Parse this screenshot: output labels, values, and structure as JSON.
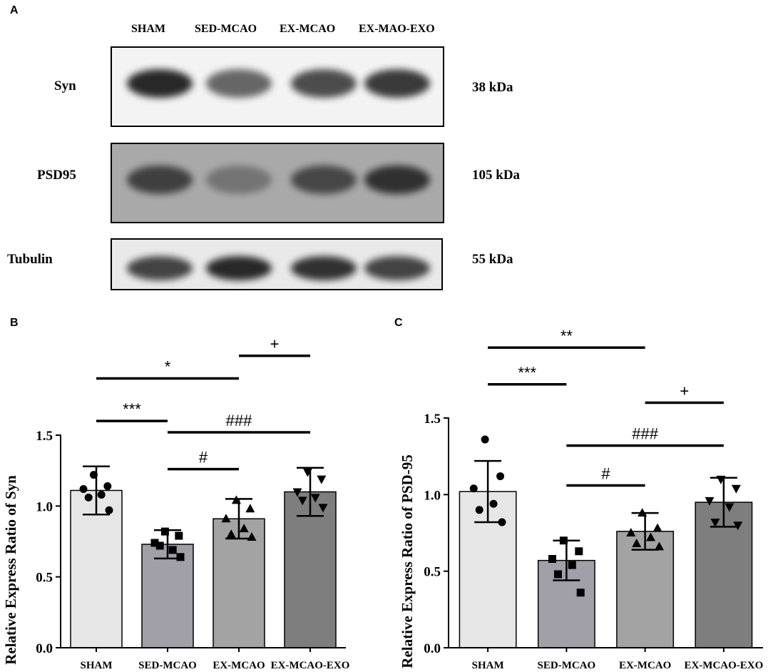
{
  "panels": {
    "a": "A",
    "b": "B",
    "c": "C"
  },
  "blot": {
    "lanes": [
      "SHAM",
      "SED-MCAO",
      "EX-MCAO",
      "EX-MAO-EXO"
    ],
    "rows": [
      {
        "label": "Syn",
        "kda": "38 kDa",
        "intensity": [
          1.0,
          0.65,
          0.8,
          0.9
        ],
        "background": "#f3f3f3"
      },
      {
        "label": "PSD95",
        "kda": "105 kDa",
        "intensity": [
          0.85,
          0.45,
          0.8,
          0.95
        ],
        "background": "#a9a9a9"
      },
      {
        "label": "Tubulin",
        "kda": "55 kDa",
        "intensity": [
          0.85,
          1.0,
          0.95,
          0.85
        ],
        "background": "#e9e9e9"
      }
    ]
  },
  "chart_data": [
    {
      "type": "bar",
      "ylabel": "Relative Express Ratio of Syn",
      "categories": [
        "SHAM",
        "SED-MCAO",
        "EX-MCAO",
        "EX-MCAO-EXO"
      ],
      "values": [
        1.11,
        0.73,
        0.91,
        1.1
      ],
      "errors": [
        0.17,
        0.1,
        0.14,
        0.17
      ],
      "colors": [
        "#e6e6e6",
        "#a1a0a8",
        "#a3a3a3",
        "#7e7e7e"
      ],
      "markers": [
        "circle",
        "square",
        "triangle-up",
        "triangle-down"
      ],
      "points": [
        [
          1.22,
          1.14,
          1.12,
          1.08,
          1.06,
          0.97
        ],
        [
          0.82,
          0.79,
          0.74,
          0.69,
          0.72,
          0.64
        ],
        [
          1.04,
          0.98,
          0.91,
          0.84,
          0.8,
          0.78
        ],
        [
          1.24,
          1.19,
          1.1,
          1.06,
          1.04,
          0.99
        ]
      ],
      "ylim": [
        0,
        1.5
      ],
      "yticks": [
        0.0,
        0.5,
        1.0,
        1.5
      ],
      "ytick_labels": [
        "0.0",
        "0.5",
        "1.0",
        "1.5"
      ],
      "significance": [
        {
          "x1": 0,
          "x2": 1,
          "y": 1.6,
          "label": "***"
        },
        {
          "x1": 0,
          "x2": 2,
          "y": 1.9,
          "label": "*"
        },
        {
          "x1": 2,
          "x2": 3,
          "y": 2.06,
          "label": "+"
        },
        {
          "x1": 1,
          "x2": 3,
          "y": 1.52,
          "label": "###"
        },
        {
          "x1": 1,
          "x2": 2,
          "y": 1.26,
          "label": "#"
        }
      ]
    },
    {
      "type": "bar",
      "ylabel": "Relative Express Ratio of PSD-95",
      "categories": [
        "SHAM",
        "SED-MCAO",
        "EX-MCAO",
        "EX-MCAO-EXO"
      ],
      "values": [
        1.02,
        0.57,
        0.76,
        0.95
      ],
      "errors": [
        0.2,
        0.13,
        0.12,
        0.16
      ],
      "colors": [
        "#e6e6e6",
        "#a1a0a8",
        "#a3a3a3",
        "#7e7e7e"
      ],
      "markers": [
        "circle",
        "square",
        "triangle-up",
        "triangle-down"
      ],
      "points": [
        [
          1.36,
          1.12,
          1.04,
          0.94,
          0.9,
          0.82
        ],
        [
          0.7,
          0.63,
          0.58,
          0.54,
          0.48,
          0.36
        ],
        [
          0.88,
          0.78,
          0.75,
          0.72,
          0.68,
          0.66
        ],
        [
          1.1,
          1.04,
          0.96,
          0.92,
          0.82,
          0.8
        ]
      ],
      "ylim": [
        0,
        1.5
      ],
      "yticks": [
        0.0,
        0.5,
        1.0,
        1.5
      ],
      "ytick_labels": [
        "0.0",
        "0.5",
        "1.0",
        "1.5"
      ],
      "significance": [
        {
          "x1": 0,
          "x2": 1,
          "y": 1.72,
          "label": "***"
        },
        {
          "x1": 0,
          "x2": 2,
          "y": 1.96,
          "label": "**"
        },
        {
          "x1": 2,
          "x2": 3,
          "y": 1.6,
          "label": "+"
        },
        {
          "x1": 1,
          "x2": 3,
          "y": 1.32,
          "label": "###"
        },
        {
          "x1": 1,
          "x2": 2,
          "y": 1.06,
          "label": "#"
        }
      ]
    }
  ]
}
